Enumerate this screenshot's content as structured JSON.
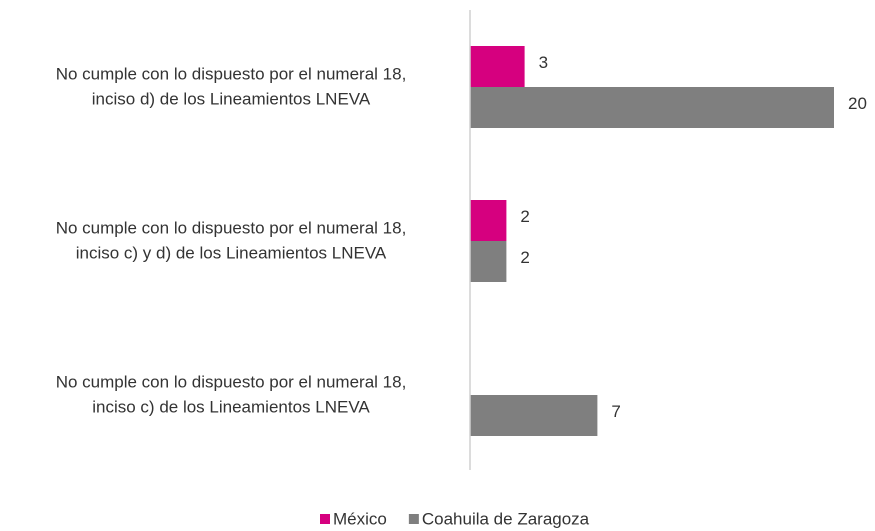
{
  "chart_data": {
    "type": "barh",
    "categories": [
      [
        "No cumple con lo dispuesto por el numeral 18,",
        "inciso d) de los Lineamientos LNEVA"
      ],
      [
        "No cumple con lo dispuesto por el numeral 18,",
        "inciso c) y d) de los Lineamientos LNEVA"
      ],
      [
        "No cumple con lo dispuesto por el numeral 18,",
        "inciso c) de los Lineamientos LNEVA"
      ]
    ],
    "series": [
      {
        "name": "México",
        "color": "#d6007f",
        "values": [
          3,
          2,
          null
        ]
      },
      {
        "name": "Coahuila de Zaragoza",
        "color": "#7f7f7f",
        "values": [
          20,
          2,
          7
        ]
      }
    ],
    "xlim": [
      0,
      20
    ],
    "legend": "bottom"
  }
}
